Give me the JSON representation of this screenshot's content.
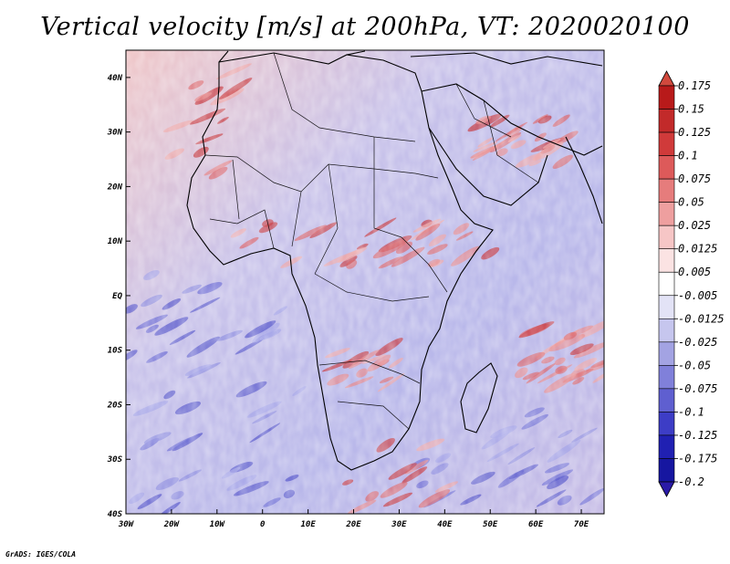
{
  "title": "Vertical velocity [m/s] at 200hPa, VT: 2020020100",
  "credit": "GrADS: IGES/COLA",
  "map": {
    "lon_range": [
      -30,
      75
    ],
    "lat_range": [
      -40,
      45
    ],
    "x_ticks": [
      "30W",
      "20W",
      "10W",
      "0",
      "10E",
      "20E",
      "30E",
      "40E",
      "50E",
      "60E",
      "70E"
    ],
    "y_ticks": [
      "40N",
      "30N",
      "20N",
      "10N",
      "EQ",
      "10S",
      "20S",
      "30S",
      "40S"
    ]
  },
  "colorbar": {
    "labels": [
      "0.175",
      "0.15",
      "0.125",
      "0.1",
      "0.075",
      "0.05",
      "0.025",
      "0.0125",
      "0.005",
      "-0.005",
      "-0.0125",
      "-0.025",
      "-0.05",
      "-0.075",
      "-0.1",
      "-0.125",
      "-0.175",
      "-0.2"
    ],
    "colors": [
      "#d1493d",
      "#b81a1a",
      "#c22a2a",
      "#d03a3a",
      "#dd5a5a",
      "#e67c7c",
      "#ee9f9f",
      "#f6c6c6",
      "#fbe3e3",
      "#ffffff",
      "#e3e3f6",
      "#c6c6ee",
      "#a3a3e3",
      "#8080da",
      "#5f5fd0",
      "#3d3dc6",
      "#2020b2",
      "#1616a0",
      "#2a1aa8"
    ]
  }
}
